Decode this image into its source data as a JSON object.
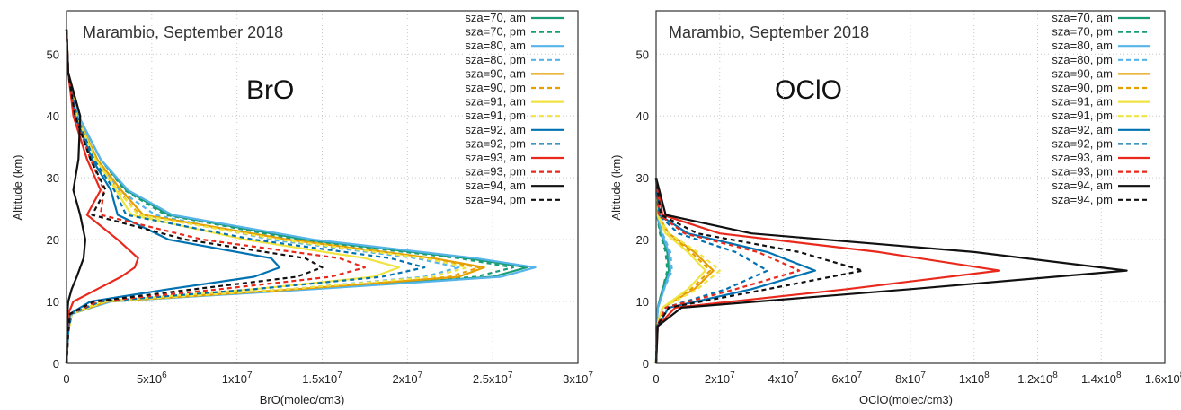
{
  "chart_data": [
    {
      "type": "line",
      "title": "Marambio, September 2018",
      "annotation": "BrO",
      "xlabel": "BrO(molec/cm3)",
      "ylabel": "Altitude (km)",
      "xlim": [
        0,
        30000000.0
      ],
      "ylim": [
        0,
        57
      ],
      "grid": true,
      "legend_position": "top-right",
      "xticks": [
        {
          "v": 0,
          "m": "0",
          "e": ""
        },
        {
          "v": 5000000.0,
          "m": "5x10",
          "e": "6"
        },
        {
          "v": 10000000.0,
          "m": "1x10",
          "e": "7"
        },
        {
          "v": 15000000.0,
          "m": "1.5x10",
          "e": "7"
        },
        {
          "v": 20000000.0,
          "m": "2x10",
          "e": "7"
        },
        {
          "v": 25000000.0,
          "m": "2.5x10",
          "e": "7"
        },
        {
          "v": 30000000.0,
          "m": "3x10",
          "e": "7"
        }
      ],
      "yticks": [
        0,
        10,
        20,
        30,
        40,
        50
      ],
      "series": [
        {
          "name": "sza=70, am",
          "color": "#1a9c77",
          "dash": false,
          "x": [
            0,
            100000.0,
            300000.0,
            2500000.0,
            14000000.0,
            25000000.0,
            27000000.0,
            23500000.0,
            14000000.0,
            6000000.0,
            3500000.0,
            2000000.0,
            700000.0,
            100000.0,
            0
          ],
          "y": [
            0,
            5,
            8,
            10,
            12,
            14,
            15.5,
            17,
            20,
            24,
            28,
            33,
            40,
            47,
            54
          ]
        },
        {
          "name": "sza=70, pm",
          "color": "#1a9c77",
          "dash": true,
          "x": [
            0,
            100000.0,
            300000.0,
            2500000.0,
            14000000.0,
            24000000.0,
            26200000.0,
            23000000.0,
            13500000.0,
            5800000.0,
            3400000.0,
            2000000.0,
            700000.0,
            100000.0,
            0
          ],
          "y": [
            0,
            5,
            8,
            10,
            12,
            14,
            15.5,
            17,
            20,
            24,
            28,
            33,
            40,
            47,
            54
          ]
        },
        {
          "name": "sza=80, am",
          "color": "#56b4e9",
          "dash": false,
          "x": [
            0,
            100000.0,
            300000.0,
            2600000.0,
            14500000.0,
            25500000.0,
            27500000.0,
            24000000.0,
            14500000.0,
            6200000.0,
            3600000.0,
            2000000.0,
            700000.0,
            100000.0,
            0
          ],
          "y": [
            0,
            5,
            8,
            10,
            12,
            14,
            15.5,
            17,
            20,
            24,
            28,
            33,
            40,
            47,
            54
          ]
        },
        {
          "name": "sza=80, pm",
          "color": "#56b4e9",
          "dash": true,
          "x": [
            0,
            100000.0,
            300000.0,
            2400000.0,
            13000000.0,
            21000000.0,
            23000000.0,
            20500000.0,
            12000000.0,
            5200000.0,
            3100000.0,
            1800000.0,
            600000.0,
            100000.0,
            0
          ],
          "y": [
            0,
            5,
            8,
            10,
            12,
            14,
            15.5,
            17,
            20,
            24,
            28,
            33,
            40,
            47,
            54
          ]
        },
        {
          "name": "sza=90, am",
          "color": "#e69f00",
          "dash": false,
          "x": [
            0,
            100000.0,
            300000.0,
            2400000.0,
            13500000.0,
            23000000.0,
            24500000.0,
            21500000.0,
            13000000.0,
            4500000.0,
            3200000.0,
            1800000.0,
            600000.0,
            100000.0,
            0
          ],
          "y": [
            0,
            5,
            8,
            10,
            12,
            14,
            15.5,
            17,
            20,
            24,
            28,
            33,
            40,
            47,
            54
          ]
        },
        {
          "name": "sza=90, pm",
          "color": "#e69f00",
          "dash": true,
          "x": [
            0,
            100000.0,
            300000.0,
            2300000.0,
            13000000.0,
            22500000.0,
            24200000.0,
            21000000.0,
            12500000.0,
            4300000.0,
            3000000.0,
            1700000.0,
            600000.0,
            100000.0,
            0
          ],
          "y": [
            0,
            5,
            8,
            10,
            12,
            14,
            15.5,
            17,
            20,
            24,
            28,
            33,
            40,
            47,
            54
          ]
        },
        {
          "name": "sza=91, am",
          "color": "#f0e442",
          "dash": false,
          "x": [
            0,
            100000.0,
            300000.0,
            2100000.0,
            11000000.0,
            18000000.0,
            19500000.0,
            17500000.0,
            10500000.0,
            3800000.0,
            2900000.0,
            1700000.0,
            600000.0,
            100000.0,
            0
          ],
          "y": [
            0,
            5,
            8,
            10,
            12,
            14,
            15.5,
            17,
            20,
            24,
            28,
            33,
            40,
            47,
            54
          ]
        },
        {
          "name": "sza=91, pm",
          "color": "#f0e442",
          "dash": true,
          "x": [
            0,
            100000.0,
            300000.0,
            2300000.0,
            13000000.0,
            21500000.0,
            23500000.0,
            21000000.0,
            12500000.0,
            4200000.0,
            3000000.0,
            1700000.0,
            600000.0,
            100000.0,
            0
          ],
          "y": [
            0,
            5,
            8,
            10,
            12,
            14,
            15.5,
            17,
            20,
            24,
            28,
            33,
            40,
            47,
            54
          ]
        },
        {
          "name": "sza=92, am",
          "color": "#0072b2",
          "dash": false,
          "x": [
            0,
            100000.0,
            200000.0,
            1400000.0,
            6000000.0,
            11000000.0,
            12500000.0,
            12000000.0,
            6000000.0,
            3000000.0,
            2600000.0,
            1500000.0,
            500000.0,
            100000.0,
            0
          ],
          "y": [
            0,
            5,
            8,
            10,
            12,
            14,
            15.5,
            17,
            20,
            24,
            28,
            33,
            40,
            47,
            54
          ]
        },
        {
          "name": "sza=92, pm",
          "color": "#0072b2",
          "dash": true,
          "x": [
            0,
            100000.0,
            300000.0,
            2000000.0,
            11000000.0,
            18500000.0,
            21000000.0,
            19000000.0,
            11000000.0,
            3500000.0,
            2800000.0,
            1600000.0,
            600000.0,
            100000.0,
            0
          ],
          "y": [
            0,
            5,
            8,
            10,
            12,
            14,
            15.5,
            17,
            20,
            24,
            28,
            33,
            40,
            47,
            54
          ]
        },
        {
          "name": "sza=93, am",
          "color": "#e8291c",
          "dash": false,
          "x": [
            0,
            50000.0,
            100000.0,
            400000.0,
            1800000.0,
            3200000.0,
            4000000.0,
            4200000.0,
            3000000.0,
            1200000.0,
            2000000.0,
            1200000.0,
            400000.0,
            100000.0,
            0
          ],
          "y": [
            0,
            5,
            8,
            10,
            12,
            14,
            15.5,
            17,
            20,
            24,
            28,
            33,
            40,
            47,
            54
          ]
        },
        {
          "name": "sza=93, pm",
          "color": "#e8291c",
          "dash": true,
          "x": [
            0,
            100000.0,
            200000.0,
            1800000.0,
            9000000.0,
            15500000.0,
            17500000.0,
            16000000.0,
            8000000.0,
            2000000.0,
            2200000.0,
            1400000.0,
            500000.0,
            100000.0,
            0
          ],
          "y": [
            0,
            5,
            8,
            10,
            12,
            14,
            15.5,
            17,
            20,
            24,
            28,
            33,
            40,
            47,
            54
          ]
        },
        {
          "name": "sza=94, am",
          "color": "#111111",
          "dash": false,
          "x": [
            0,
            30000.0,
            50000.0,
            100000.0,
            300000.0,
            600000.0,
            800000.0,
            1000000.0,
            1100000.0,
            800000.0,
            400000.0,
            700000.0,
            800000.0,
            100000.0,
            0
          ],
          "y": [
            0,
            5,
            8,
            10,
            12,
            14,
            15.5,
            17,
            20,
            24,
            28,
            33,
            40,
            47,
            54
          ]
        },
        {
          "name": "sza=94, pm",
          "color": "#111111",
          "dash": true,
          "x": [
            0,
            100000.0,
            200000.0,
            1600000.0,
            7500000.0,
            13500000.0,
            15000000.0,
            14000000.0,
            7000000.0,
            1500000.0,
            2300000.0,
            1400000.0,
            500000.0,
            100000.0,
            0
          ],
          "y": [
            0,
            5,
            8,
            10,
            12,
            14,
            15.5,
            17,
            20,
            24,
            28,
            33,
            40,
            47,
            54
          ]
        }
      ]
    },
    {
      "type": "line",
      "title": "Marambio, September 2018",
      "annotation": "OClO",
      "xlabel": "OClO(molec/cm3)",
      "ylabel": "Altitude (km)",
      "xlim": [
        0,
        160000000.0
      ],
      "ylim": [
        0,
        57
      ],
      "grid": true,
      "legend_position": "top-right",
      "xticks": [
        {
          "v": 0,
          "m": "0",
          "e": ""
        },
        {
          "v": 20000000.0,
          "m": "2x10",
          "e": "7"
        },
        {
          "v": 40000000.0,
          "m": "4x10",
          "e": "7"
        },
        {
          "v": 60000000.0,
          "m": "6x10",
          "e": "7"
        },
        {
          "v": 80000000.0,
          "m": "8x10",
          "e": "7"
        },
        {
          "v": 100000000.0,
          "m": "1x10",
          "e": "8"
        },
        {
          "v": 120000000.0,
          "m": "1.2x10",
          "e": "8"
        },
        {
          "v": 140000000.0,
          "m": "1.4x10",
          "e": "8"
        },
        {
          "v": 160000000.0,
          "m": "1.6x10",
          "e": "8"
        }
      ],
      "yticks": [
        0,
        10,
        20,
        30,
        40,
        50
      ],
      "series": [
        {
          "name": "sza=70, am",
          "color": "#1a9c77",
          "dash": false,
          "x": [
            0,
            100000.0,
            500000.0,
            2000000.0,
            4000000.0,
            3500000.0,
            1500000.0,
            300000.0,
            0
          ],
          "y": [
            0,
            6,
            9,
            12,
            15,
            18,
            21,
            24,
            30
          ]
        },
        {
          "name": "sza=70, pm",
          "color": "#1a9c77",
          "dash": true,
          "x": [
            0,
            100000.0,
            500000.0,
            2000000.0,
            3500000.0,
            3000000.0,
            1200000.0,
            300000.0,
            0
          ],
          "y": [
            0,
            6,
            9,
            12,
            15,
            18,
            21,
            24,
            30
          ]
        },
        {
          "name": "sza=80, am",
          "color": "#56b4e9",
          "dash": false,
          "x": [
            0,
            100000.0,
            600000.0,
            2500000.0,
            4500000.0,
            4000000.0,
            1800000.0,
            300000.0,
            0
          ],
          "y": [
            0,
            6,
            9,
            12,
            15,
            18,
            21,
            24,
            30
          ]
        },
        {
          "name": "sza=80, pm",
          "color": "#56b4e9",
          "dash": true,
          "x": [
            0,
            100000.0,
            600000.0,
            2500000.0,
            5000000.0,
            4500000.0,
            2000000.0,
            300000.0,
            0
          ],
          "y": [
            0,
            6,
            9,
            12,
            15,
            18,
            21,
            24,
            30
          ]
        },
        {
          "name": "sza=90, am",
          "color": "#e69f00",
          "dash": false,
          "x": [
            0,
            200000.0,
            2000000.0,
            12000000.0,
            18000000.0,
            12000000.0,
            4000000.0,
            500000.0,
            0
          ],
          "y": [
            0,
            6,
            9,
            12,
            15,
            18,
            21,
            24,
            30
          ]
        },
        {
          "name": "sza=90, pm",
          "color": "#e69f00",
          "dash": true,
          "x": [
            0,
            200000.0,
            2000000.0,
            11000000.0,
            17000000.0,
            11000000.0,
            3500000.0,
            500000.0,
            0
          ],
          "y": [
            0,
            6,
            9,
            12,
            15,
            18,
            21,
            24,
            30
          ]
        },
        {
          "name": "sza=91, am",
          "color": "#f0e442",
          "dash": false,
          "x": [
            0,
            200000.0,
            2000000.0,
            10000000.0,
            15500000.0,
            10000000.0,
            3000000.0,
            400000.0,
            0
          ],
          "y": [
            0,
            6,
            9,
            12,
            15,
            18,
            21,
            24,
            30
          ]
        },
        {
          "name": "sza=91, pm",
          "color": "#f0e442",
          "dash": true,
          "x": [
            0,
            200000.0,
            2000000.0,
            13000000.0,
            20000000.0,
            13000000.0,
            4000000.0,
            500000.0,
            0
          ],
          "y": [
            0,
            6,
            9,
            12,
            15,
            18,
            21,
            24,
            30
          ]
        },
        {
          "name": "sza=92, am",
          "color": "#0072b2",
          "dash": false,
          "x": [
            0,
            300000.0,
            4000000.0,
            30000000.0,
            50000000.0,
            35000000.0,
            10000000.0,
            1000000.0,
            0
          ],
          "y": [
            0,
            6,
            9,
            12,
            15,
            18,
            21,
            24,
            30
          ]
        },
        {
          "name": "sza=92, pm",
          "color": "#0072b2",
          "dash": true,
          "x": [
            0,
            300000.0,
            3000000.0,
            22000000.0,
            35000000.0,
            25000000.0,
            7000000.0,
            800000.0,
            0
          ],
          "y": [
            0,
            6,
            9,
            12,
            15,
            18,
            21,
            24,
            30
          ]
        },
        {
          "name": "sza=93, am",
          "color": "#e8291c",
          "dash": false,
          "x": [
            0,
            500000.0,
            6000000.0,
            60000000.0,
            108000000.0,
            70000000.0,
            20000000.0,
            2000000.0,
            0
          ],
          "y": [
            0,
            6,
            9,
            12,
            15,
            18,
            21,
            24,
            30
          ]
        },
        {
          "name": "sza=93, pm",
          "color": "#e8291c",
          "dash": true,
          "x": [
            0,
            300000.0,
            3000000.0,
            25000000.0,
            45000000.0,
            32000000.0,
            9000000.0,
            1000000.0,
            0
          ],
          "y": [
            0,
            6,
            9,
            12,
            15,
            18,
            21,
            24,
            30
          ]
        },
        {
          "name": "sza=94, am",
          "color": "#111111",
          "dash": false,
          "x": [
            0,
            500000.0,
            8000000.0,
            80000000.0,
            148000000.0,
            100000000.0,
            30000000.0,
            3000000.0,
            0
          ],
          "y": [
            0,
            6,
            9,
            12,
            15,
            18,
            21,
            24,
            30
          ]
        },
        {
          "name": "sza=94, pm",
          "color": "#111111",
          "dash": true,
          "x": [
            0,
            300000.0,
            4000000.0,
            35000000.0,
            65000000.0,
            45000000.0,
            13000000.0,
            1500000.0,
            0
          ],
          "y": [
            0,
            6,
            9,
            12,
            15,
            18,
            21,
            24,
            30
          ]
        }
      ]
    }
  ]
}
